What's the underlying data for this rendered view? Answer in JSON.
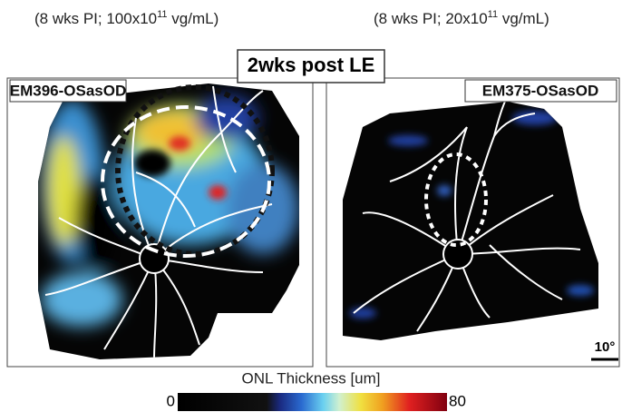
{
  "left_caption": {
    "prefix": "(8 wks PI; 100x10",
    "exponent": "11",
    "suffix": " vg/mL)"
  },
  "right_caption": {
    "prefix": "(8 wks PI; 20x10",
    "exponent": "11",
    "suffix": " vg/mL)"
  },
  "title": "2wks post LE",
  "left_panel": {
    "label": "EM396-OSasOD"
  },
  "right_panel": {
    "label": "EM375-OSasOD",
    "scale_bar": "10°"
  },
  "colorbar": {
    "title": "ONL Thickness [um]",
    "min": "0",
    "max": "80"
  }
}
